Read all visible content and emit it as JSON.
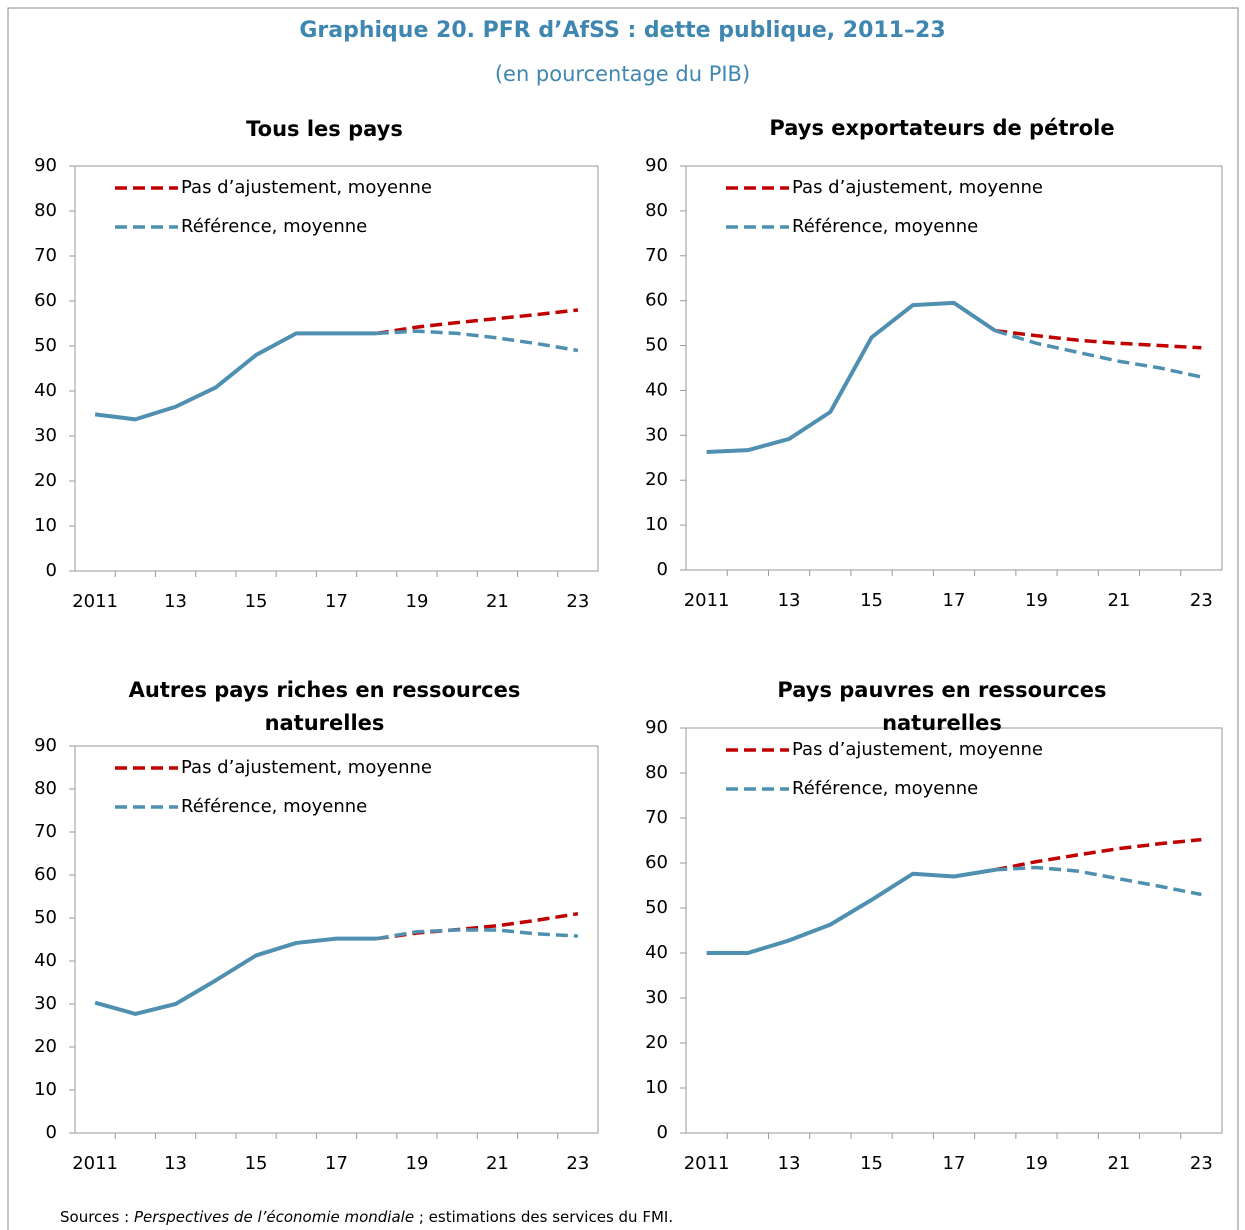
{
  "header": {
    "title": "Graphique 20. PFR d’AfSS : dette publique, 2011–23",
    "subtitle": "(en pourcentage du PIB)"
  },
  "source": {
    "prefix": "Sources : ",
    "italic": "Perspectives de l’économie mondiale",
    "suffix": " ; estimations des services du FMI."
  },
  "chart_data": [
    {
      "type": "line",
      "title": "Tous les pays",
      "categories": [
        "2011",
        null,
        "13",
        null,
        "15",
        null,
        "17",
        null,
        "19",
        null,
        "21",
        null,
        "23"
      ],
      "ylim": [
        0,
        90
      ],
      "yticks": [
        0,
        10,
        20,
        30,
        40,
        50,
        60,
        70,
        80,
        90
      ],
      "series": [
        {
          "name": "Pas d’ajustement, moyenne",
          "color": "#c00000",
          "values": [
            null,
            null,
            null,
            null,
            null,
            null,
            null,
            52.8,
            54.2,
            55.2,
            56.1,
            57,
            58
          ]
        },
        {
          "name": "Référence, moyenne",
          "color": "#4f8fb0",
          "values": [
            34.8,
            33.7,
            36.5,
            40.8,
            48,
            52.8,
            52.8,
            52.8,
            53.3,
            52.8,
            51.8,
            50.5,
            49
          ]
        }
      ]
    },
    {
      "type": "line",
      "title": "Pays exportateurs de pétrole",
      "categories": [
        "2011",
        null,
        "13",
        null,
        "15",
        null,
        "17",
        null,
        "19",
        null,
        "21",
        null,
        "23"
      ],
      "ylim": [
        0,
        90
      ],
      "yticks": [
        0,
        10,
        20,
        30,
        40,
        50,
        60,
        70,
        80,
        90
      ],
      "series": [
        {
          "name": "Pas d’ajustement, moyenne",
          "color": "#c00000",
          "values": [
            null,
            null,
            null,
            null,
            null,
            null,
            null,
            53.3,
            52.2,
            51.2,
            50.5,
            50,
            49.5
          ]
        },
        {
          "name": "Référence, moyenne",
          "color": "#4f8fb0",
          "values": [
            26.3,
            26.7,
            29.2,
            35.2,
            51.8,
            59,
            59.5,
            53.3,
            50.5,
            48.5,
            46.5,
            45,
            43
          ]
        }
      ]
    },
    {
      "type": "line",
      "title": "Autres pays riches en ressources naturelles",
      "categories": [
        "2011",
        null,
        "13",
        null,
        "15",
        null,
        "17",
        null,
        "19",
        null,
        "21",
        null,
        "23"
      ],
      "ylim": [
        0,
        90
      ],
      "yticks": [
        0,
        10,
        20,
        30,
        40,
        50,
        60,
        70,
        80,
        90
      ],
      "series": [
        {
          "name": "Pas d’ajustement, moyenne",
          "color": "#c00000",
          "values": [
            null,
            null,
            null,
            null,
            null,
            null,
            null,
            45.2,
            46.5,
            47.3,
            48.2,
            49.5,
            51
          ]
        },
        {
          "name": "Référence, moyenne",
          "color": "#4f8fb0",
          "values": [
            30.3,
            27.7,
            30,
            35.5,
            41.3,
            44.2,
            45.2,
            45.2,
            46.8,
            47.2,
            47.2,
            46.3,
            45.8
          ]
        }
      ]
    },
    {
      "type": "line",
      "title": "Pays pauvres en ressources naturelles",
      "categories": [
        "2011",
        null,
        "13",
        null,
        "15",
        null,
        "17",
        null,
        "19",
        null,
        "21",
        null,
        "23"
      ],
      "ylim": [
        0,
        90
      ],
      "yticks": [
        0,
        10,
        20,
        30,
        40,
        50,
        60,
        70,
        80,
        90
      ],
      "series": [
        {
          "name": "Pas d’ajustement, moyenne",
          "color": "#c00000",
          "values": [
            null,
            null,
            null,
            null,
            null,
            null,
            null,
            58.5,
            60.3,
            61.8,
            63.2,
            64.3,
            65.2
          ]
        },
        {
          "name": "Référence, moyenne",
          "color": "#4f8fb0",
          "values": [
            40,
            40,
            42.8,
            46.3,
            51.8,
            57.6,
            57,
            58.5,
            59,
            58.2,
            56.5,
            54.8,
            53
          ]
        }
      ]
    }
  ]
}
